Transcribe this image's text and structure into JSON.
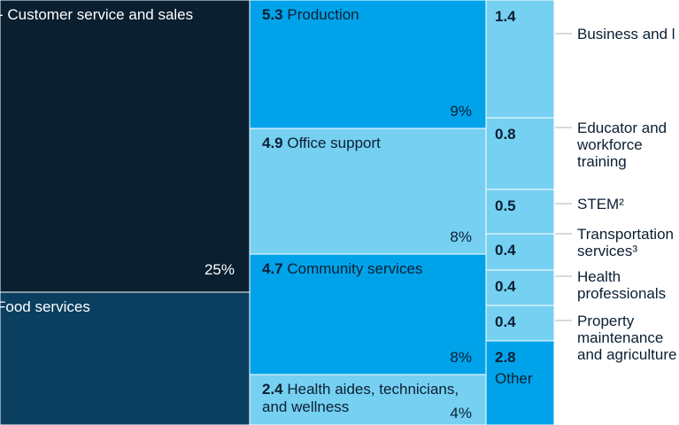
{
  "chart_data": {
    "type": "treemap",
    "colors": {
      "navy": "#0a1f30",
      "dark_blue": "#0a3f5f",
      "bright_blue": "#00a3ea",
      "light_blue": "#76d0f1",
      "white_text": "#ffffff",
      "dark_text": "#0b1f33",
      "leader": "#aab4bc"
    },
    "columns": [
      {
        "tiles": [
          {
            "label": "Customer service and sales",
            "value": null,
            "percent": "25%",
            "color": "navy"
          },
          {
            "label": "Food services",
            "value": null,
            "percent": "",
            "color": "dark_blue"
          }
        ]
      },
      {
        "tiles": [
          {
            "value": "5.3",
            "label": "Production",
            "percent": "9%",
            "color": "bright_blue"
          },
          {
            "value": "4.9",
            "label": "Office support",
            "percent": "8%",
            "color": "light_blue"
          },
          {
            "value": "4.7",
            "label": "Community services",
            "percent": "8%",
            "color": "bright_blue"
          },
          {
            "value": "2.4",
            "label": "Health aides, technicians, and wellness",
            "percent": "4%",
            "color": "light_blue"
          }
        ]
      },
      {
        "tiles": [
          {
            "value": "1.4",
            "label": "Business and l",
            "color": "light_blue",
            "external": true
          },
          {
            "value": "0.8",
            "label": "Educator and workforce training",
            "color": "light_blue",
            "external": true
          },
          {
            "value": "0.5",
            "label": "STEM²",
            "color": "light_blue",
            "external": true
          },
          {
            "value": "0.4",
            "label": "Transportation services³",
            "color": "light_blue",
            "external": true
          },
          {
            "value": "0.4",
            "label": "Health professionals",
            "color": "light_blue",
            "external": true
          },
          {
            "value": "0.4",
            "label": "Property maintenance and agriculture",
            "color": "light_blue",
            "external": true
          },
          {
            "value": "2.8",
            "label": "Other",
            "color": "bright_blue",
            "external": false
          }
        ]
      }
    ]
  }
}
